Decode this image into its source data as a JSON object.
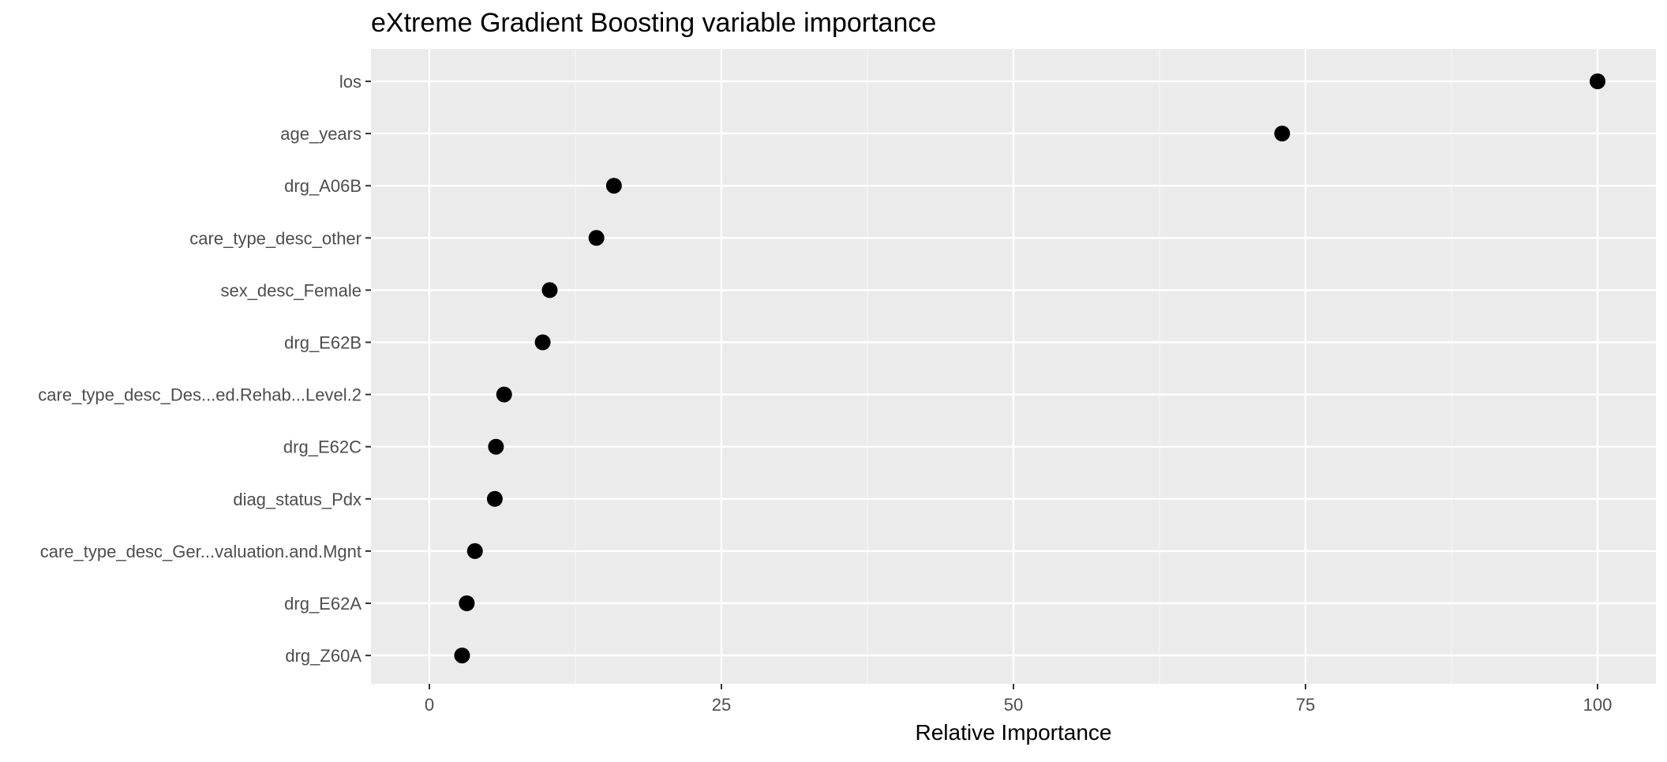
{
  "chart_data": {
    "type": "scatter",
    "title": "eXtreme Gradient Boosting variable importance",
    "xlabel": "Relative Importance",
    "ylabel": "",
    "xlim": [
      -5,
      105
    ],
    "x_ticks": [
      0,
      25,
      50,
      75,
      100
    ],
    "x_tick_labels": [
      "0",
      "25",
      "50",
      "75",
      "100"
    ],
    "grid": true,
    "legend": "none",
    "categories": [
      "los",
      "age_years",
      "drg_A06B",
      "care_type_desc_other",
      "sex_desc_Female",
      "drg_E62B",
      "care_type_desc_Des...ed.Rehab...Level.2",
      "drg_E62C",
      "diag_status_Pdx",
      "care_type_desc_Ger...valuation.and.Mgnt",
      "drg_E62A",
      "drg_Z60A"
    ],
    "values": [
      100,
      73.0,
      15.8,
      14.3,
      10.3,
      9.7,
      6.4,
      5.7,
      5.6,
      3.9,
      3.2,
      2.8
    ],
    "colors": {
      "panel_background": "#ebebeb",
      "grid_major": "#ffffff",
      "grid_minor": "#f5f5f5",
      "point": "#000000",
      "tick_label": "#4d4d4d",
      "tick_mark": "#333333",
      "text": "#000000"
    }
  }
}
